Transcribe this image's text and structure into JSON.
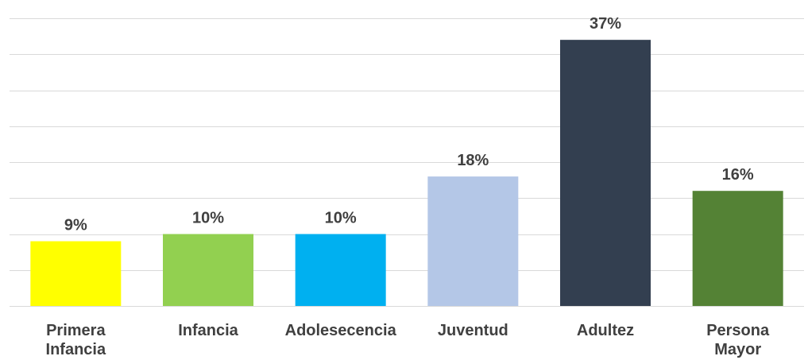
{
  "chart_data": {
    "type": "bar",
    "title": "",
    "xlabel": "",
    "ylabel": "",
    "ylim": [
      0,
      40
    ],
    "grid": true,
    "legend": "none",
    "categories": [
      [
        "Primera",
        "Infancia"
      ],
      [
        "Infancia"
      ],
      [
        "Adolesecencia"
      ],
      [
        "Juventud"
      ],
      [
        "Adultez"
      ],
      [
        "Persona",
        "Mayor"
      ]
    ],
    "values": [
      9,
      10,
      10,
      18,
      37,
      16
    ],
    "data_labels": [
      "9%",
      "10%",
      "10%",
      "18%",
      "37%",
      "16%"
    ],
    "colors": [
      "#ffff00",
      "#92d050",
      "#00b0f0",
      "#b4c7e7",
      "#333f50",
      "#548235"
    ]
  }
}
